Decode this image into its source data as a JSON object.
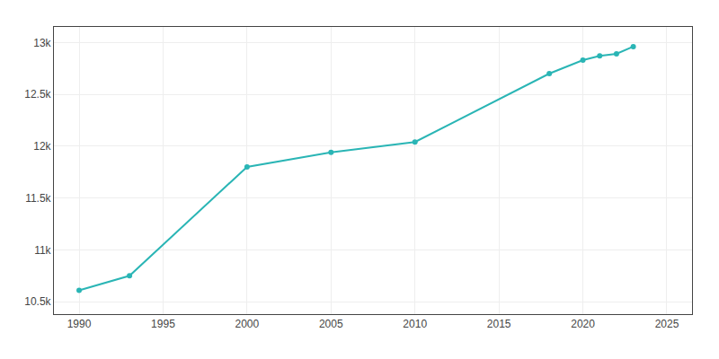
{
  "chart_data": {
    "type": "line",
    "x": [
      1990,
      1993,
      2000,
      2005,
      2010,
      2018,
      2020,
      2021,
      2022,
      2023
    ],
    "values": [
      10610,
      10750,
      11800,
      11940,
      12040,
      12700,
      12830,
      12870,
      12890,
      12960
    ],
    "color": "#2ab5b5",
    "marker": "circle",
    "xlim": [
      1988.5,
      2026.5
    ],
    "ylim": [
      10380,
      13150
    ],
    "xticks": [
      1990,
      1995,
      2000,
      2005,
      2010,
      2015,
      2020,
      2025
    ],
    "yticks": [
      {
        "value": 10500,
        "label": "10.5k"
      },
      {
        "value": 11000,
        "label": "11k"
      },
      {
        "value": 11500,
        "label": "11.5k"
      },
      {
        "value": 12000,
        "label": "12k"
      },
      {
        "value": 12500,
        "label": "12.5k"
      },
      {
        "value": 13000,
        "label": "13k"
      }
    ],
    "grid": true
  }
}
